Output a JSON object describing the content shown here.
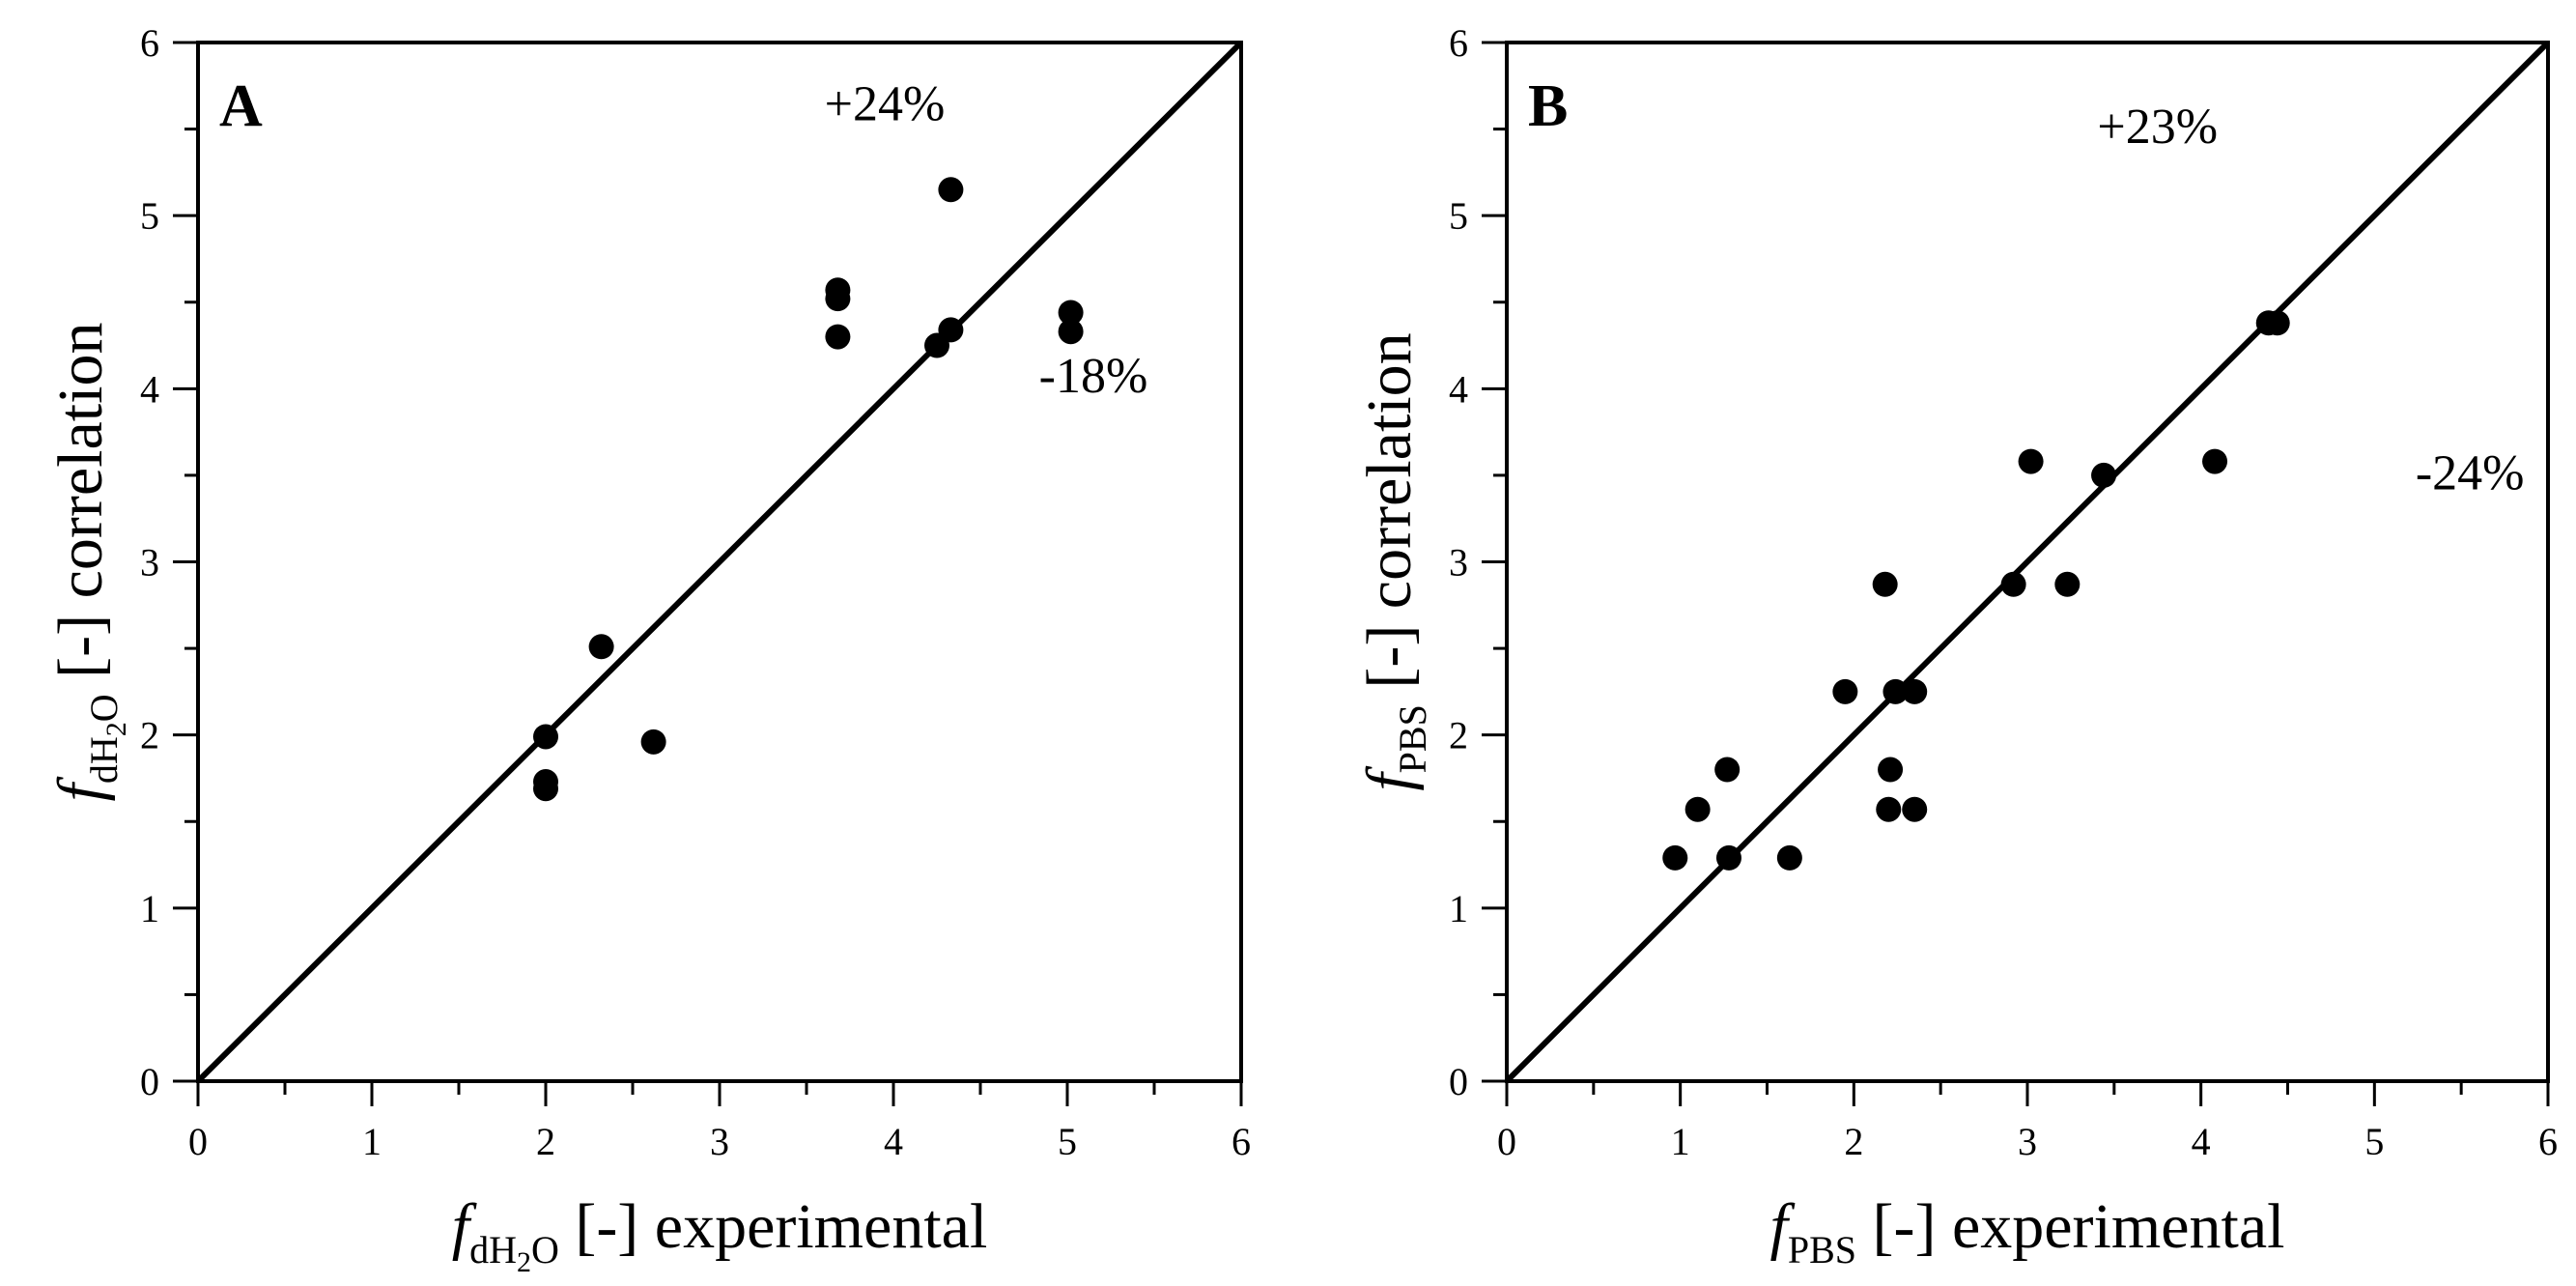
{
  "chart_data": [
    {
      "type": "scatter",
      "panel_label": "A",
      "xlabel": {
        "italic": "f",
        "sub_pre": "dH",
        "sub_sub": "2",
        "sub_post": "O",
        "text": " [-] experimental"
      },
      "ylabel": {
        "italic": "f",
        "sub_pre": "dH",
        "sub_sub": "2",
        "sub_post": "O",
        "text": " [-] correlation"
      },
      "xlim": [
        0,
        6
      ],
      "ylim": [
        0,
        6
      ],
      "xticks": [
        0,
        1,
        2,
        3,
        4,
        5,
        6
      ],
      "yticks": [
        0,
        1,
        2,
        3,
        4,
        5,
        6
      ],
      "reference_line": {
        "from": [
          0,
          0
        ],
        "to": [
          6,
          6
        ]
      },
      "annotations": [
        {
          "text": "+24%",
          "x": 3.95,
          "y": 5.55
        },
        {
          "text": "-18%",
          "x": 5.15,
          "y": 3.98
        }
      ],
      "series": [
        {
          "name": "points",
          "x": [
            2.0,
            2.0,
            2.0,
            2.32,
            2.62,
            3.68,
            3.68,
            3.68,
            4.25,
            4.33,
            4.33,
            5.02,
            5.02
          ],
          "y": [
            1.99,
            1.73,
            1.69,
            2.51,
            1.96,
            4.57,
            4.52,
            4.3,
            4.25,
            4.34,
            5.15,
            4.44,
            4.33
          ]
        }
      ]
    },
    {
      "type": "scatter",
      "panel_label": "B",
      "xlabel": {
        "italic": "f",
        "sub_pre": "PBS",
        "sub_sub": "",
        "sub_post": "",
        "text": " [-] experimental"
      },
      "ylabel": {
        "italic": "f",
        "sub_pre": "PBS",
        "sub_sub": "",
        "sub_post": "",
        "text": " [-] correlation"
      },
      "xlim": [
        0,
        6
      ],
      "ylim": [
        0,
        6
      ],
      "xticks": [
        0,
        1,
        2,
        3,
        4,
        5,
        6
      ],
      "yticks": [
        0,
        1,
        2,
        3,
        4,
        5,
        6
      ],
      "reference_line": {
        "from": [
          0,
          0
        ],
        "to": [
          6,
          6
        ]
      },
      "annotations": [
        {
          "text": "+23%",
          "x": 3.75,
          "y": 5.42
        },
        {
          "text": "-24%",
          "x": 5.55,
          "y": 3.42
        }
      ],
      "series": [
        {
          "name": "points",
          "x": [
            0.97,
            1.1,
            1.27,
            1.28,
            1.63,
            1.95,
            2.18,
            2.2,
            2.21,
            2.24,
            2.35,
            2.35,
            2.92,
            3.02,
            3.23,
            3.44,
            4.08,
            4.39,
            4.44
          ],
          "y": [
            1.29,
            1.57,
            1.8,
            1.29,
            1.29,
            2.25,
            2.87,
            1.57,
            1.8,
            2.25,
            2.25,
            1.57,
            2.87,
            3.58,
            2.87,
            3.5,
            3.58,
            4.38,
            4.38
          ]
        }
      ]
    }
  ]
}
